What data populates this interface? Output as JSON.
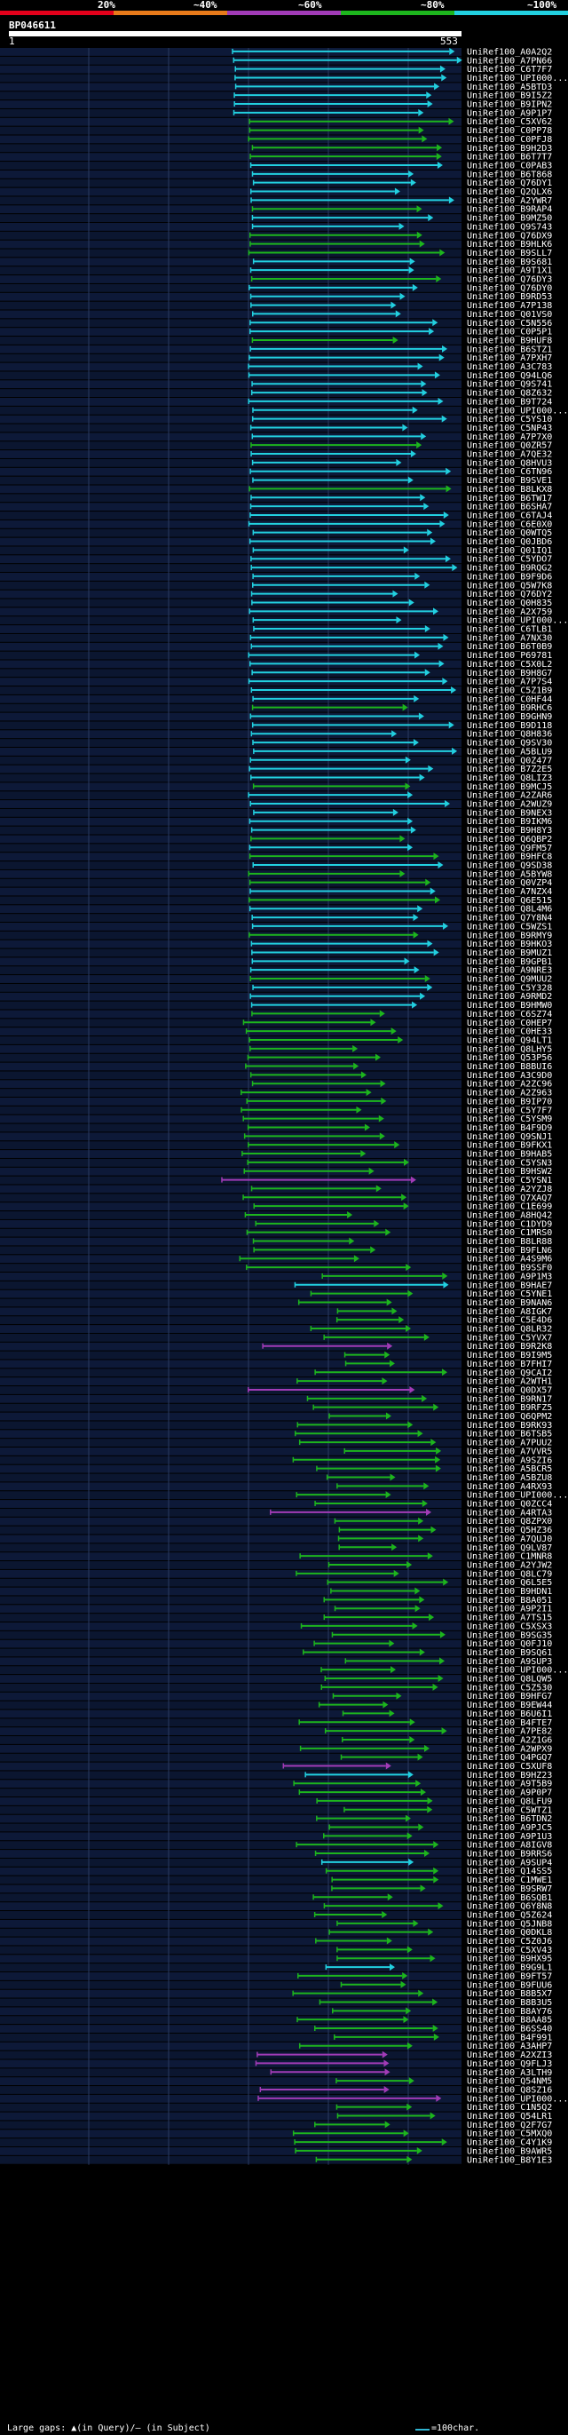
{
  "legend": {
    "labels": [
      "20%",
      "~40%",
      "~60%",
      "~80%",
      "~100%"
    ],
    "colors": [
      "#e3001b",
      "#e87a1a",
      "#a13bb6",
      "#1db51d",
      "#22d0e0"
    ]
  },
  "query": {
    "id": "BP046611",
    "start": "1",
    "end": "553"
  },
  "hits": [
    {
      "label": "UniRef100_A0A2Q2",
      "c": "c"
    },
    {
      "label": "UniRef100_A7PN66",
      "c": "c"
    },
    {
      "label": "UniRef100_C6T7F7",
      "c": "c"
    },
    {
      "label": "UniRef100_UPI000...",
      "c": "c"
    },
    {
      "label": "UniRef100_A5BTD3",
      "c": "c"
    },
    {
      "label": "UniRef100_B9I5Z2",
      "c": "c"
    },
    {
      "label": "UniRef100_B9IPN2",
      "c": "c"
    },
    {
      "label": "UniRef100_A9P1P7",
      "c": "c"
    },
    {
      "label": "UniRef100_C5XV62",
      "c": "g"
    },
    {
      "label": "UniRef100_C0PP78",
      "c": "g"
    },
    {
      "label": "UniRef100_C0PFJ8",
      "c": "g"
    },
    {
      "label": "UniRef100_B9H2D3",
      "c": "g"
    },
    {
      "label": "UniRef100_B6T7T7",
      "c": "g"
    },
    {
      "label": "UniRef100_C0PAB3",
      "c": "c"
    },
    {
      "label": "UniRef100_B6T868",
      "c": "c"
    },
    {
      "label": "UniRef100_Q76DY1",
      "c": "c"
    },
    {
      "label": "UniRef100_Q2QLX6",
      "c": "c"
    },
    {
      "label": "UniRef100_A2YWR7",
      "c": "c"
    },
    {
      "label": "UniRef100_B9RAP4",
      "c": "g"
    },
    {
      "label": "UniRef100_B9MZ50",
      "c": "c"
    },
    {
      "label": "UniRef100_Q9S743",
      "c": "c"
    },
    {
      "label": "UniRef100_Q76DX9",
      "c": "g"
    },
    {
      "label": "UniRef100_B9HLK6",
      "c": "g"
    },
    {
      "label": "UniRef100_B9SLL7",
      "c": "g"
    },
    {
      "label": "UniRef100_B9S681",
      "c": "c"
    },
    {
      "label": "UniRef100_A9T1X1",
      "c": "c"
    },
    {
      "label": "UniRef100_Q76DY3",
      "c": "g"
    },
    {
      "label": "UniRef100_Q76DY0",
      "c": "c"
    },
    {
      "label": "UniRef100_B9RD53",
      "c": "c"
    },
    {
      "label": "UniRef100_A7P138",
      "c": "c"
    },
    {
      "label": "UniRef100_Q01VS0",
      "c": "c"
    },
    {
      "label": "UniRef100_C5N556",
      "c": "c"
    },
    {
      "label": "UniRef100_C0P5P1",
      "c": "c"
    },
    {
      "label": "UniRef100_B9HUF8",
      "c": "g"
    },
    {
      "label": "UniRef100_B6STZ1",
      "c": "c"
    },
    {
      "label": "UniRef100_A7PXH7",
      "c": "c"
    },
    {
      "label": "UniRef100_A3C783",
      "c": "c"
    },
    {
      "label": "UniRef100_Q94LQ6",
      "c": "c"
    },
    {
      "label": "UniRef100_Q9S741",
      "c": "c"
    },
    {
      "label": "UniRef100_Q8Z632",
      "c": "c"
    },
    {
      "label": "UniRef100_B9T724",
      "c": "c"
    },
    {
      "label": "UniRef100_UPI000...",
      "c": "c"
    },
    {
      "label": "UniRef100_C5YS10",
      "c": "c"
    },
    {
      "label": "UniRef100_C5NP43",
      "c": "c"
    },
    {
      "label": "UniRef100_A7P7X0",
      "c": "c"
    },
    {
      "label": "UniRef100_Q0ZR57",
      "c": "g"
    },
    {
      "label": "UniRef100_A7QE32",
      "c": "c"
    },
    {
      "label": "UniRef100_Q8HVU3",
      "c": "c"
    },
    {
      "label": "UniRef100_C6TN96",
      "c": "c"
    },
    {
      "label": "UniRef100_B9SVE1",
      "c": "c"
    },
    {
      "label": "UniRef100_B8LKX8",
      "c": "g"
    },
    {
      "label": "UniRef100_B6TW17",
      "c": "c"
    },
    {
      "label": "UniRef100_B6SHA7",
      "c": "c"
    },
    {
      "label": "UniRef100_C6TAJ4",
      "c": "c"
    },
    {
      "label": "UniRef100_C6E0X0",
      "c": "c"
    },
    {
      "label": "UniRef100_Q0WTQ5",
      "c": "c"
    },
    {
      "label": "UniRef100_Q0JBD6",
      "c": "c"
    },
    {
      "label": "UniRef100_Q01IQ1",
      "c": "c"
    },
    {
      "label": "UniRef100_C5YDO7",
      "c": "c"
    },
    {
      "label": "UniRef100_B9RQG2",
      "c": "c"
    },
    {
      "label": "UniRef100_B9F9D6",
      "c": "c"
    },
    {
      "label": "UniRef100_Q5W7K8",
      "c": "c"
    },
    {
      "label": "UniRef100_Q76DY2",
      "c": "c"
    },
    {
      "label": "UniRef100_Q0H835",
      "c": "c"
    },
    {
      "label": "UniRef100_A2X759",
      "c": "c"
    },
    {
      "label": "UniRef100_UPI000...",
      "c": "c"
    },
    {
      "label": "UniRef100_C6TLB1",
      "c": "c"
    },
    {
      "label": "UniRef100_A7NX30",
      "c": "c"
    },
    {
      "label": "UniRef100_B6T0B9",
      "c": "c"
    },
    {
      "label": "UniRef100_P69781",
      "c": "c"
    },
    {
      "label": "UniRef100_C5X0L2",
      "c": "c"
    },
    {
      "label": "UniRef100_B9H8G7",
      "c": "c"
    },
    {
      "label": "UniRef100_A7P7S4",
      "c": "c"
    },
    {
      "label": "UniRef100_C5Z1B9",
      "c": "c"
    },
    {
      "label": "UniRef100_C0HF44",
      "c": "c"
    },
    {
      "label": "UniRef100_B9RHC6",
      "c": "g"
    },
    {
      "label": "UniRef100_B9GHN9",
      "c": "c"
    },
    {
      "label": "UniRef100_B9D118",
      "c": "c"
    },
    {
      "label": "UniRef100_Q8H836",
      "c": "c"
    },
    {
      "label": "UniRef100_Q9SV30",
      "c": "c"
    },
    {
      "label": "UniRef100_A5BLU9",
      "c": "c"
    },
    {
      "label": "UniRef100_Q0Z477",
      "c": "c"
    },
    {
      "label": "UniRef100_B7Z2E5",
      "c": "c"
    },
    {
      "label": "UniRef100_Q8LIZ3",
      "c": "c"
    },
    {
      "label": "UniRef100_B9MCJ5",
      "c": "g"
    },
    {
      "label": "UniRef100_A2ZAR6",
      "c": "c"
    },
    {
      "label": "UniRef100_A2WUZ9",
      "c": "c"
    },
    {
      "label": "UniRef100_B9NEX3",
      "c": "c"
    },
    {
      "label": "UniRef100_B9IKM6",
      "c": "c"
    },
    {
      "label": "UniRef100_B9H8Y3",
      "c": "c"
    },
    {
      "label": "UniRef100_Q6QBP2",
      "c": "g"
    },
    {
      "label": "UniRef100_Q9FM57",
      "c": "c"
    },
    {
      "label": "UniRef100_B9HFC8",
      "c": "g"
    },
    {
      "label": "UniRef100_Q9SD38",
      "c": "c"
    },
    {
      "label": "UniRef100_A5BYW8",
      "c": "g"
    },
    {
      "label": "UniRef100_Q0VZP4",
      "c": "g"
    },
    {
      "label": "UniRef100_A7NZX4",
      "c": "c"
    },
    {
      "label": "UniRef100_Q6E515",
      "c": "g"
    },
    {
      "label": "UniRef100_Q8L4M6",
      "c": "c"
    },
    {
      "label": "UniRef100_Q7Y8N4",
      "c": "c"
    },
    {
      "label": "UniRef100_C5WZS1",
      "c": "c"
    },
    {
      "label": "UniRef100_B9RMY9",
      "c": "g"
    },
    {
      "label": "UniRef100_B9HKO3",
      "c": "c"
    },
    {
      "label": "UniRef100_B9MUZ1",
      "c": "c"
    },
    {
      "label": "UniRef100_B9GPB1",
      "c": "c"
    },
    {
      "label": "UniRef100_A9NRE3",
      "c": "c"
    },
    {
      "label": "UniRef100_Q9MUU2",
      "c": "g"
    },
    {
      "label": "UniRef100_C5Y328",
      "c": "c"
    },
    {
      "label": "UniRef100_A9RMD2",
      "c": "c"
    },
    {
      "label": "UniRef100_B9HMW0",
      "c": "c"
    },
    {
      "label": "UniRef100_C6SZ74",
      "c": "g"
    },
    {
      "label": "UniRef100_C0HEP7",
      "c": "g"
    },
    {
      "label": "UniRef100_C0HE33",
      "c": "g"
    },
    {
      "label": "UniRef100_Q94LT1",
      "c": "g"
    },
    {
      "label": "UniRef100_Q8LHY5",
      "c": "g"
    },
    {
      "label": "UniRef100_Q53P56",
      "c": "g"
    },
    {
      "label": "UniRef100_B8BUI6",
      "c": "g"
    },
    {
      "label": "UniRef100_A3C9D0",
      "c": "g"
    },
    {
      "label": "UniRef100_A2ZC96",
      "c": "g"
    },
    {
      "label": "UniRef100_A2Z963",
      "c": "g"
    },
    {
      "label": "UniRef100_B9IP70",
      "c": "g"
    },
    {
      "label": "UniRef100_C5Y7F7",
      "c": "g"
    },
    {
      "label": "UniRef100_C5YSM9",
      "c": "g"
    },
    {
      "label": "UniRef100_B4F9D9",
      "c": "g"
    },
    {
      "label": "UniRef100_Q9SNJ1",
      "c": "g"
    },
    {
      "label": "UniRef100_B9FKX1",
      "c": "g"
    },
    {
      "label": "UniRef100_B9HAB5",
      "c": "g"
    },
    {
      "label": "UniRef100_C5YSN3",
      "c": "g"
    },
    {
      "label": "UniRef100_B9HSW2",
      "c": "g"
    },
    {
      "label": "UniRef100_C5YSN1",
      "c": "m"
    },
    {
      "label": "UniRef100_A2YZJ8",
      "c": "g"
    },
    {
      "label": "UniRef100_Q7XAQ7",
      "c": "g"
    },
    {
      "label": "UniRef100_C1E699",
      "c": "g"
    },
    {
      "label": "UniRef100_A8HQ42",
      "c": "g"
    },
    {
      "label": "UniRef100_C1DYD9",
      "c": "g"
    },
    {
      "label": "UniRef100_C1MRS0",
      "c": "g"
    },
    {
      "label": "UniRef100_B8LR88",
      "c": "g"
    },
    {
      "label": "UniRef100_B9FLN6",
      "c": "g"
    },
    {
      "label": "UniRef100_A4S9M6",
      "c": "g"
    },
    {
      "label": "UniRef100_B9SSF0",
      "c": "g"
    },
    {
      "label": "UniRef100_A9P1M3",
      "c": "g"
    },
    {
      "label": "UniRef100_B9HAE7",
      "c": "c"
    },
    {
      "label": "UniRef100_C5YNE1",
      "c": "g"
    },
    {
      "label": "UniRef100_B9NAN6",
      "c": "g"
    },
    {
      "label": "UniRef100_A8IGK7",
      "c": "g"
    },
    {
      "label": "UniRef100_C5E4D6",
      "c": "g"
    },
    {
      "label": "UniRef100_Q8LR32",
      "c": "g"
    },
    {
      "label": "UniRef100_C5YVX7",
      "c": "g"
    },
    {
      "label": "UniRef100_B9R2K8",
      "c": "m"
    },
    {
      "label": "UniRef100_B9I9M5",
      "c": "g"
    },
    {
      "label": "UniRef100_B7FHI7",
      "c": "g"
    },
    {
      "label": "UniRef100_Q9CAI2",
      "c": "g"
    },
    {
      "label": "UniRef100_A2WTH1",
      "c": "g"
    },
    {
      "label": "UniRef100_Q0DX57",
      "c": "m"
    },
    {
      "label": "UniRef100_B9RN17",
      "c": "g"
    },
    {
      "label": "UniRef100_B9RFZ5",
      "c": "g"
    },
    {
      "label": "UniRef100_Q6QPM2",
      "c": "g"
    },
    {
      "label": "UniRef100_B9RK93",
      "c": "g"
    },
    {
      "label": "UniRef100_B6TSB5",
      "c": "g"
    },
    {
      "label": "UniRef100_A7PUU2",
      "c": "g"
    },
    {
      "label": "UniRef100_A7VVR5",
      "c": "g"
    },
    {
      "label": "UniRef100_A9SZI6",
      "c": "g"
    },
    {
      "label": "UniRef100_A5BCR5",
      "c": "g"
    },
    {
      "label": "UniRef100_A5BZU8",
      "c": "g"
    },
    {
      "label": "UniRef100_A4RX93",
      "c": "g"
    },
    {
      "label": "UniRef100_UPI000...",
      "c": "g"
    },
    {
      "label": "UniRef100_Q0ZCC4",
      "c": "g"
    },
    {
      "label": "UniRef100_A4RTA3",
      "c": "m"
    },
    {
      "label": "UniRef100_Q8ZPX0",
      "c": "g"
    },
    {
      "label": "UniRef100_Q5HZ36",
      "c": "g"
    },
    {
      "label": "UniRef100_A7QUJ0",
      "c": "g"
    },
    {
      "label": "UniRef100_Q9LV87",
      "c": "g"
    },
    {
      "label": "UniRef100_C1MNR8",
      "c": "g"
    },
    {
      "label": "UniRef100_A2YJW2",
      "c": "g"
    },
    {
      "label": "UniRef100_Q8LC79",
      "c": "g"
    },
    {
      "label": "UniRef100_Q6L5E5",
      "c": "g"
    },
    {
      "label": "UniRef100_B9HDN1",
      "c": "g"
    },
    {
      "label": "UniRef100_B8A051",
      "c": "g"
    },
    {
      "label": "UniRef100_A9P2I1",
      "c": "g"
    },
    {
      "label": "UniRef100_A7TS15",
      "c": "g"
    },
    {
      "label": "UniRef100_C5XSX3",
      "c": "g"
    },
    {
      "label": "UniRef100_B9SG35",
      "c": "g"
    },
    {
      "label": "UniRef100_Q0FJ10",
      "c": "g"
    },
    {
      "label": "UniRef100_B9SQ61",
      "c": "g"
    },
    {
      "label": "UniRef100_A9SUP3",
      "c": "g"
    },
    {
      "label": "UniRef100_UPI000...",
      "c": "g"
    },
    {
      "label": "UniRef100_Q8LQW5",
      "c": "g"
    },
    {
      "label": "UniRef100_C5Z530",
      "c": "g"
    },
    {
      "label": "UniRef100_B9HFG7",
      "c": "g"
    },
    {
      "label": "UniRef100_B9EW44",
      "c": "g"
    },
    {
      "label": "UniRef100_B6U6I1",
      "c": "g"
    },
    {
      "label": "UniRef100_B4FTE7",
      "c": "g"
    },
    {
      "label": "UniRef100_A7PE82",
      "c": "g"
    },
    {
      "label": "UniRef100_A2Z1G6",
      "c": "g"
    },
    {
      "label": "UniRef100_A2WPX9",
      "c": "g"
    },
    {
      "label": "UniRef100_Q4PGQ7",
      "c": "g"
    },
    {
      "label": "UniRef100_C5XUF8",
      "c": "m"
    },
    {
      "label": "UniRef100_B9HZ23",
      "c": "c"
    },
    {
      "label": "UniRef100_A9T5B9",
      "c": "g"
    },
    {
      "label": "UniRef100_A9P0P7",
      "c": "g"
    },
    {
      "label": "UniRef100_Q8LFU9",
      "c": "g"
    },
    {
      "label": "UniRef100_C5WTZ1",
      "c": "g"
    },
    {
      "label": "UniRef100_B6TDN2",
      "c": "g"
    },
    {
      "label": "UniRef100_A9PJC5",
      "c": "g"
    },
    {
      "label": "UniRef100_A9P1U3",
      "c": "g"
    },
    {
      "label": "UniRef100_A8IGV8",
      "c": "g"
    },
    {
      "label": "UniRef100_B9RRS6",
      "c": "g"
    },
    {
      "label": "UniRef100_A9SUP4",
      "c": "c"
    },
    {
      "label": "UniRef100_Q14SS5",
      "c": "g"
    },
    {
      "label": "UniRef100_C1MWE1",
      "c": "g"
    },
    {
      "label": "UniRef100_B9SRW7",
      "c": "g"
    },
    {
      "label": "UniRef100_B6SQB1",
      "c": "g"
    },
    {
      "label": "UniRef100_Q6Y8N8",
      "c": "g"
    },
    {
      "label": "UniRef100_Q5Z624",
      "c": "g"
    },
    {
      "label": "UniRef100_Q5JNB8",
      "c": "g"
    },
    {
      "label": "UniRef100_Q0DKL8",
      "c": "g"
    },
    {
      "label": "UniRef100_C5Z0J6",
      "c": "g"
    },
    {
      "label": "UniRef100_C5XV43",
      "c": "g"
    },
    {
      "label": "UniRef100_B9HX95",
      "c": "g"
    },
    {
      "label": "UniRef100_B9G9L1",
      "c": "c"
    },
    {
      "label": "UniRef100_B9FT57",
      "c": "g"
    },
    {
      "label": "UniRef100_B9FUU6",
      "c": "g"
    },
    {
      "label": "UniRef100_B8B5X7",
      "c": "g"
    },
    {
      "label": "UniRef100_B8B3U5",
      "c": "g"
    },
    {
      "label": "UniRef100_B8AY76",
      "c": "g"
    },
    {
      "label": "UniRef100_B8AA85",
      "c": "g"
    },
    {
      "label": "UniRef100_B6SS40",
      "c": "g"
    },
    {
      "label": "UniRef100_B4F991",
      "c": "g"
    },
    {
      "label": "UniRef100_A3AHP7",
      "c": "g"
    },
    {
      "label": "UniRef100_A2XZI3",
      "c": "m"
    },
    {
      "label": "UniRef100_Q9FLJ3",
      "c": "m"
    },
    {
      "label": "UniRef100_A3LTH9",
      "c": "m"
    },
    {
      "label": "UniRef100_Q54NM5",
      "c": "g"
    },
    {
      "label": "UniRef100_Q8SZ16",
      "c": "m"
    },
    {
      "label": "UniRef100_UPI000...",
      "c": "m"
    },
    {
      "label": "UniRef100_C1N5Q2",
      "c": "g"
    },
    {
      "label": "UniRef100_Q54LR1",
      "c": "g"
    },
    {
      "label": "UniRef100_Q2F7G7",
      "c": "g"
    },
    {
      "label": "UniRef100_C5MXQ0",
      "c": "g"
    },
    {
      "label": "UniRef100_C4Y1K9",
      "c": "g"
    },
    {
      "label": "UniRef100_B9AWR5",
      "c": "g"
    },
    {
      "label": "UniRef100_B8Y1E3",
      "c": "g"
    }
  ],
  "footer": {
    "gaps": "Large gaps: ▲(in Query)/— (in Subject)",
    "scale": "=100char."
  }
}
